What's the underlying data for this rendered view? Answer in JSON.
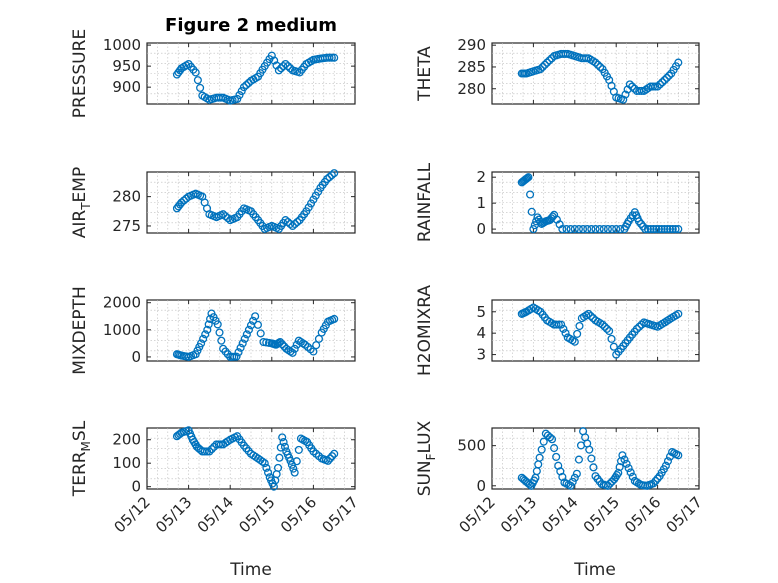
{
  "title": "Figure 2 medium",
  "xlabel": "Time",
  "x_ticks": [
    "05/12",
    "05/13",
    "05/14",
    "05/15",
    "05/16",
    "05/17"
  ],
  "marker_color": "#0072bd",
  "chart_data": [
    {
      "type": "scatter",
      "ylabel": "PRESSURE",
      "yticks": [
        "900",
        "950",
        "1000"
      ],
      "ylim": [
        860,
        1005
      ],
      "x": [
        12.72,
        12.83,
        13.0,
        13.17,
        13.33,
        13.5,
        13.67,
        13.83,
        14.0,
        14.17,
        14.33,
        14.5,
        14.67,
        14.83,
        15.0,
        15.17,
        15.33,
        15.5,
        15.67,
        15.83,
        16.0,
        16.17,
        16.33,
        16.5
      ],
      "y": [
        930,
        945,
        955,
        935,
        880,
        870,
        875,
        875,
        868,
        872,
        900,
        915,
        925,
        950,
        975,
        940,
        955,
        940,
        935,
        955,
        965,
        968,
        970,
        970
      ]
    },
    {
      "type": "scatter",
      "ylabel": "THETA",
      "yticks": [
        "280",
        "285",
        "290"
      ],
      "ylim": [
        276.5,
        290.5
      ],
      "x": [
        12.72,
        12.83,
        13.0,
        13.17,
        13.33,
        13.5,
        13.67,
        13.83,
        14.0,
        14.17,
        14.33,
        14.5,
        14.67,
        14.83,
        15.0,
        15.17,
        15.33,
        15.5,
        15.67,
        15.83,
        16.0,
        16.17,
        16.33,
        16.5
      ],
      "y": [
        283.5,
        283.5,
        284.0,
        284.5,
        286.0,
        287.5,
        288.0,
        288.0,
        287.5,
        287.0,
        287.0,
        286.0,
        284.5,
        282.0,
        278.0,
        277.5,
        281.0,
        279.5,
        279.5,
        280.5,
        280.5,
        282.0,
        283.5,
        286.0
      ]
    },
    {
      "type": "scatter",
      "ylabel": "AIR_TEMP",
      "ylabel_main": "AIR",
      "ylabel_sub": "T",
      "ylabel_rest": "EMP",
      "yticks": [
        "275",
        "280"
      ],
      "ylim": [
        273.8,
        284.2
      ],
      "x": [
        12.72,
        12.83,
        13.0,
        13.17,
        13.33,
        13.5,
        13.67,
        13.83,
        14.0,
        14.17,
        14.33,
        14.5,
        14.67,
        14.83,
        15.0,
        15.17,
        15.33,
        15.5,
        15.67,
        15.83,
        16.0,
        16.17,
        16.33,
        16.5
      ],
      "y": [
        278,
        279,
        280,
        280.5,
        280,
        277,
        276.5,
        277,
        276,
        276.5,
        278,
        277.5,
        276,
        274.5,
        275,
        274.5,
        276,
        275,
        276,
        277.5,
        279.5,
        281.5,
        283,
        284
      ]
    },
    {
      "type": "scatter",
      "ylabel": "RAINFALL",
      "yticks": [
        "0",
        "1",
        "2"
      ],
      "ylim": [
        -0.15,
        2.2
      ],
      "x": [
        12.72,
        12.8,
        12.88,
        13.0,
        13.1,
        13.2,
        13.3,
        13.4,
        13.5,
        13.7,
        14.0,
        14.3,
        14.6,
        14.9,
        15.2,
        15.3,
        15.45,
        15.55,
        15.7,
        15.9,
        16.1,
        16.3,
        16.5
      ],
      "y": [
        1.8,
        1.9,
        2.0,
        0.0,
        0.45,
        0.2,
        0.3,
        0.35,
        0.55,
        0.0,
        0.0,
        0.0,
        0.0,
        0.0,
        0.0,
        0.3,
        0.65,
        0.3,
        0.0,
        0.0,
        0.0,
        0.0,
        0.0
      ]
    },
    {
      "type": "scatter",
      "ylabel": "MIXDEPTH",
      "yticks": [
        "0",
        "1000",
        "2000"
      ],
      "ylim": [
        -150,
        2100
      ],
      "x": [
        12.72,
        12.83,
        13.0,
        13.17,
        13.3,
        13.45,
        13.55,
        13.7,
        13.83,
        14.0,
        14.15,
        14.3,
        14.45,
        14.6,
        14.8,
        15.0,
        15.1,
        15.2,
        15.35,
        15.5,
        15.65,
        15.8,
        16.0,
        16.2,
        16.35,
        16.5
      ],
      "y": [
        100,
        50,
        0,
        100,
        500,
        1000,
        1600,
        1200,
        300,
        0,
        10,
        500,
        1000,
        1500,
        550,
        500,
        450,
        550,
        300,
        150,
        600,
        450,
        200,
        900,
        1300,
        1400
      ]
    },
    {
      "type": "scatter",
      "ylabel": "H2OMIXRA",
      "yticks": [
        "3",
        "4",
        "5"
      ],
      "ylim": [
        2.7,
        5.55
      ],
      "x": [
        12.72,
        12.83,
        13.0,
        13.17,
        13.33,
        13.5,
        13.67,
        13.83,
        14.0,
        14.17,
        14.33,
        14.5,
        14.67,
        14.83,
        15.0,
        15.17,
        15.33,
        15.5,
        15.67,
        15.83,
        16.0,
        16.17,
        16.33,
        16.5
      ],
      "y": [
        4.9,
        5.0,
        5.2,
        5.0,
        4.6,
        4.4,
        4.4,
        3.8,
        3.6,
        4.7,
        4.9,
        4.6,
        4.4,
        4.1,
        3.0,
        3.4,
        3.8,
        4.2,
        4.5,
        4.4,
        4.3,
        4.5,
        4.7,
        4.9
      ]
    },
    {
      "type": "scatter",
      "ylabel": "TERR_MSL",
      "ylabel_main": "TERR",
      "ylabel_sub": "M",
      "ylabel_rest": "SL",
      "yticks": [
        "0",
        "100",
        "200"
      ],
      "ylim": [
        -10,
        250
      ],
      "x": [
        12.72,
        12.83,
        13.0,
        13.1,
        13.2,
        13.33,
        13.5,
        13.67,
        13.83,
        14.0,
        14.17,
        14.33,
        14.5,
        14.67,
        14.83,
        14.95,
        15.05,
        15.15,
        15.25,
        15.35,
        15.45,
        15.55,
        15.7,
        15.85,
        16.0,
        16.2,
        16.35,
        16.5
      ],
      "y": [
        215,
        230,
        240,
        200,
        170,
        150,
        150,
        180,
        180,
        200,
        215,
        175,
        140,
        120,
        100,
        40,
        0,
        80,
        210,
        150,
        110,
        60,
        205,
        190,
        150,
        120,
        110,
        140
      ]
    },
    {
      "type": "scatter",
      "ylabel": "SUN_FLUX",
      "ylabel_main": "SUN",
      "ylabel_sub": "F",
      "ylabel_rest": "LUX",
      "yticks": [
        "0",
        "500"
      ],
      "ylim": [
        -40,
        720
      ],
      "x": [
        12.72,
        12.83,
        12.95,
        13.05,
        13.15,
        13.3,
        13.45,
        13.6,
        13.75,
        13.9,
        14.05,
        14.2,
        14.35,
        14.5,
        14.65,
        14.8,
        14.95,
        15.05,
        15.15,
        15.3,
        15.45,
        15.6,
        15.75,
        15.9,
        16.05,
        16.2,
        16.35,
        16.5
      ],
      "y": [
        100,
        50,
        0,
        100,
        350,
        650,
        580,
        250,
        40,
        0,
        150,
        680,
        450,
        120,
        20,
        0,
        80,
        160,
        380,
        220,
        60,
        10,
        0,
        30,
        120,
        250,
        420,
        380
      ]
    }
  ]
}
